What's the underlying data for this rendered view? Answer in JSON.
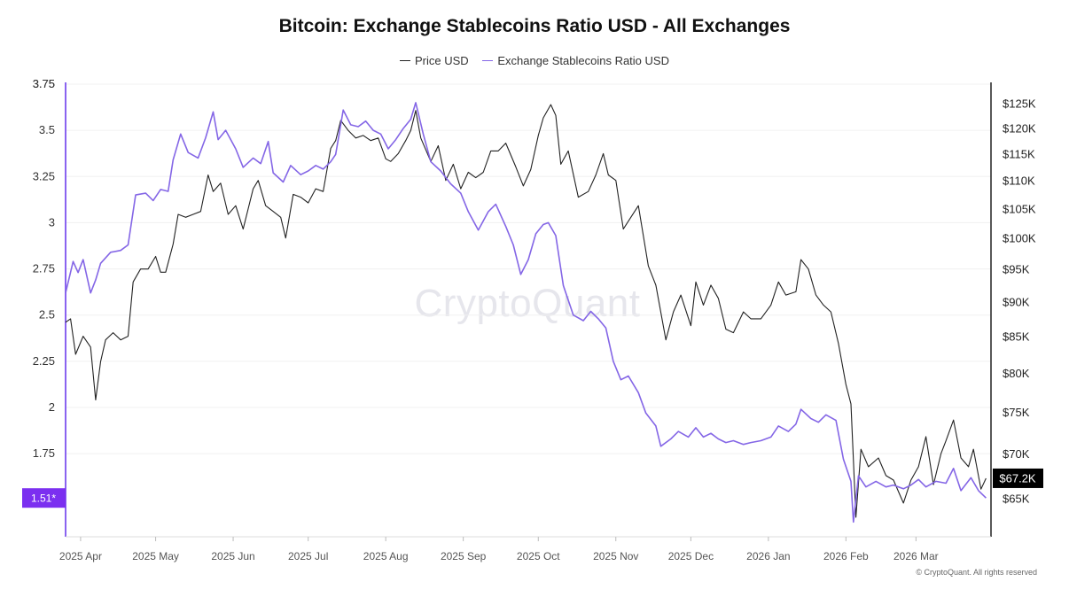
{
  "title": "Bitcoin: Exchange Stablecoins Ratio USD - All Exchanges",
  "legend": {
    "price": "Price USD",
    "ratio": "Exchange Stablecoins Ratio USD"
  },
  "watermark": "CryptoQuant",
  "copyright": "© CryptoQuant. All rights reserved",
  "colors": {
    "price": "#222222",
    "ratio": "#8466e6",
    "ratio_axis": "#8a63f0",
    "ratio_badge": "#7b2ff0",
    "price_badge": "#000000"
  },
  "chart_data": {
    "type": "line",
    "x_axis": {
      "start": "2025-03-26",
      "end": "2026-03-31",
      "ticks": [
        {
          "label": "2025 Apr",
          "date": "2025-04-01"
        },
        {
          "label": "2025 May",
          "date": "2025-05-01"
        },
        {
          "label": "2025 Jun",
          "date": "2025-06-01"
        },
        {
          "label": "2025 Jul",
          "date": "2025-07-01"
        },
        {
          "label": "2025 Aug",
          "date": "2025-08-01"
        },
        {
          "label": "2025 Sep",
          "date": "2025-09-01"
        },
        {
          "label": "2025 Oct",
          "date": "2025-10-01"
        },
        {
          "label": "2025 Nov",
          "date": "2025-11-01"
        },
        {
          "label": "2025 Dec",
          "date": "2025-12-01"
        },
        {
          "label": "2026 Jan",
          "date": "2026-01-01"
        },
        {
          "label": "2026 Feb",
          "date": "2026-02-01"
        },
        {
          "label": "2026 Mar",
          "date": "2026-03-01"
        }
      ]
    },
    "y_left": {
      "ylim": [
        1.3,
        3.75
      ],
      "ticks": [
        1.75,
        2,
        2.25,
        2.5,
        2.75,
        3,
        3.25,
        3.5,
        3.75
      ]
    },
    "y_right": {
      "scale": "log",
      "ylim": [
        61000,
        129000
      ],
      "ticks": [
        65000,
        70000,
        75000,
        80000,
        85000,
        90000,
        95000,
        100000,
        105000,
        110000,
        115000,
        120000,
        125000
      ],
      "tick_labels": [
        "$65K",
        "$70K",
        "$75K",
        "$80K",
        "$85K",
        "$90K",
        "$95K",
        "$100K",
        "$105K",
        "$110K",
        "$115K",
        "$120K",
        "$125K"
      ]
    },
    "series": [
      {
        "name": "Price USD",
        "axis": "right",
        "points": [
          [
            "2025-03-26",
            87000
          ],
          [
            "2025-03-28",
            87500
          ],
          [
            "2025-03-30",
            82500
          ],
          [
            "2025-04-02",
            85000
          ],
          [
            "2025-04-05",
            83500
          ],
          [
            "2025-04-07",
            76500
          ],
          [
            "2025-04-09",
            81500
          ],
          [
            "2025-04-11",
            84500
          ],
          [
            "2025-04-14",
            85500
          ],
          [
            "2025-04-17",
            84500
          ],
          [
            "2025-04-20",
            85000
          ],
          [
            "2025-04-22",
            93000
          ],
          [
            "2025-04-25",
            95000
          ],
          [
            "2025-04-28",
            95000
          ],
          [
            "2025-05-01",
            97000
          ],
          [
            "2025-05-03",
            94500
          ],
          [
            "2025-05-05",
            94500
          ],
          [
            "2025-05-08",
            99000
          ],
          [
            "2025-05-10",
            104000
          ],
          [
            "2025-05-13",
            103500
          ],
          [
            "2025-05-16",
            104000
          ],
          [
            "2025-05-19",
            104500
          ],
          [
            "2025-05-22",
            111000
          ],
          [
            "2025-05-24",
            108000
          ],
          [
            "2025-05-27",
            109500
          ],
          [
            "2025-05-30",
            104000
          ],
          [
            "2025-06-02",
            105500
          ],
          [
            "2025-06-05",
            101500
          ],
          [
            "2025-06-09",
            108500
          ],
          [
            "2025-06-11",
            110000
          ],
          [
            "2025-06-14",
            105500
          ],
          [
            "2025-06-17",
            104500
          ],
          [
            "2025-06-20",
            103500
          ],
          [
            "2025-06-22",
            100000
          ],
          [
            "2025-06-25",
            107500
          ],
          [
            "2025-06-28",
            107000
          ],
          [
            "2025-07-01",
            106000
          ],
          [
            "2025-07-04",
            108500
          ],
          [
            "2025-07-07",
            108000
          ],
          [
            "2025-07-10",
            116000
          ],
          [
            "2025-07-12",
            117500
          ],
          [
            "2025-07-14",
            121500
          ],
          [
            "2025-07-17",
            119500
          ],
          [
            "2025-07-20",
            118000
          ],
          [
            "2025-07-23",
            118500
          ],
          [
            "2025-07-26",
            117500
          ],
          [
            "2025-07-29",
            118000
          ],
          [
            "2025-08-01",
            114000
          ],
          [
            "2025-08-03",
            113500
          ],
          [
            "2025-08-06",
            115000
          ],
          [
            "2025-08-09",
            117500
          ],
          [
            "2025-08-11",
            119500
          ],
          [
            "2025-08-13",
            123500
          ],
          [
            "2025-08-15",
            118000
          ],
          [
            "2025-08-19",
            113500
          ],
          [
            "2025-08-22",
            116500
          ],
          [
            "2025-08-25",
            110000
          ],
          [
            "2025-08-28",
            113000
          ],
          [
            "2025-08-31",
            108500
          ],
          [
            "2025-09-03",
            111500
          ],
          [
            "2025-09-06",
            110500
          ],
          [
            "2025-09-09",
            111500
          ],
          [
            "2025-09-12",
            115500
          ],
          [
            "2025-09-15",
            115500
          ],
          [
            "2025-09-18",
            117000
          ],
          [
            "2025-09-22",
            112500
          ],
          [
            "2025-09-25",
            109000
          ],
          [
            "2025-09-28",
            112000
          ],
          [
            "2025-10-01",
            118500
          ],
          [
            "2025-10-03",
            122000
          ],
          [
            "2025-10-06",
            124700
          ],
          [
            "2025-10-08",
            122500
          ],
          [
            "2025-10-10",
            113000
          ],
          [
            "2025-10-13",
            115500
          ],
          [
            "2025-10-17",
            107000
          ],
          [
            "2025-10-21",
            108000
          ],
          [
            "2025-10-24",
            111000
          ],
          [
            "2025-10-27",
            115000
          ],
          [
            "2025-10-29",
            111000
          ],
          [
            "2025-11-01",
            110000
          ],
          [
            "2025-11-04",
            101500
          ],
          [
            "2025-11-07",
            103500
          ],
          [
            "2025-11-10",
            105500
          ],
          [
            "2025-11-14",
            95500
          ],
          [
            "2025-11-17",
            92500
          ],
          [
            "2025-11-21",
            84500
          ],
          [
            "2025-11-24",
            88500
          ],
          [
            "2025-11-27",
            91000
          ],
          [
            "2025-12-01",
            86500
          ],
          [
            "2025-12-03",
            93000
          ],
          [
            "2025-12-06",
            89500
          ],
          [
            "2025-12-09",
            92500
          ],
          [
            "2025-12-12",
            90500
          ],
          [
            "2025-12-15",
            86000
          ],
          [
            "2025-12-18",
            85500
          ],
          [
            "2025-12-22",
            88500
          ],
          [
            "2025-12-25",
            87500
          ],
          [
            "2025-12-29",
            87500
          ],
          [
            "2026-01-02",
            89500
          ],
          [
            "2026-01-05",
            93000
          ],
          [
            "2026-01-08",
            91000
          ],
          [
            "2026-01-12",
            91500
          ],
          [
            "2026-01-14",
            96500
          ],
          [
            "2026-01-17",
            95000
          ],
          [
            "2026-01-20",
            91000
          ],
          [
            "2026-01-23",
            89500
          ],
          [
            "2026-01-26",
            88500
          ],
          [
            "2026-01-29",
            84000
          ],
          [
            "2026-02-01",
            78500
          ],
          [
            "2026-02-03",
            76000
          ],
          [
            "2026-02-05",
            63000
          ],
          [
            "2026-02-07",
            70500
          ],
          [
            "2026-02-10",
            68500
          ],
          [
            "2026-02-14",
            69500
          ],
          [
            "2026-02-17",
            67500
          ],
          [
            "2026-02-20",
            67000
          ],
          [
            "2026-02-24",
            64500
          ],
          [
            "2026-02-27",
            67000
          ],
          [
            "2026-03-02",
            68500
          ],
          [
            "2026-03-05",
            72000
          ],
          [
            "2026-03-08",
            66500
          ],
          [
            "2026-03-11",
            70000
          ],
          [
            "2026-03-13",
            71500
          ],
          [
            "2026-03-16",
            74000
          ],
          [
            "2026-03-19",
            69500
          ],
          [
            "2026-03-22",
            68500
          ],
          [
            "2026-03-24",
            70500
          ],
          [
            "2026-03-27",
            66000
          ],
          [
            "2026-03-29",
            67200
          ]
        ]
      },
      {
        "name": "Exchange Stablecoins Ratio USD",
        "axis": "left",
        "points": [
          [
            "2025-03-26",
            2.62
          ],
          [
            "2025-03-29",
            2.79
          ],
          [
            "2025-03-31",
            2.73
          ],
          [
            "2025-04-02",
            2.8
          ],
          [
            "2025-04-05",
            2.62
          ],
          [
            "2025-04-07",
            2.69
          ],
          [
            "2025-04-09",
            2.78
          ],
          [
            "2025-04-13",
            2.84
          ],
          [
            "2025-04-17",
            2.85
          ],
          [
            "2025-04-20",
            2.88
          ],
          [
            "2025-04-23",
            3.15
          ],
          [
            "2025-04-27",
            3.16
          ],
          [
            "2025-04-30",
            3.12
          ],
          [
            "2025-05-03",
            3.18
          ],
          [
            "2025-05-06",
            3.17
          ],
          [
            "2025-05-08",
            3.34
          ],
          [
            "2025-05-11",
            3.48
          ],
          [
            "2025-05-14",
            3.38
          ],
          [
            "2025-05-18",
            3.35
          ],
          [
            "2025-05-21",
            3.46
          ],
          [
            "2025-05-24",
            3.6
          ],
          [
            "2025-05-26",
            3.45
          ],
          [
            "2025-05-29",
            3.5
          ],
          [
            "2025-06-02",
            3.4
          ],
          [
            "2025-06-05",
            3.3
          ],
          [
            "2025-06-09",
            3.35
          ],
          [
            "2025-06-12",
            3.32
          ],
          [
            "2025-06-15",
            3.44
          ],
          [
            "2025-06-17",
            3.27
          ],
          [
            "2025-06-21",
            3.22
          ],
          [
            "2025-06-24",
            3.31
          ],
          [
            "2025-06-28",
            3.26
          ],
          [
            "2025-07-01",
            3.28
          ],
          [
            "2025-07-04",
            3.31
          ],
          [
            "2025-07-07",
            3.29
          ],
          [
            "2025-07-10",
            3.33
          ],
          [
            "2025-07-12",
            3.37
          ],
          [
            "2025-07-15",
            3.61
          ],
          [
            "2025-07-18",
            3.53
          ],
          [
            "2025-07-21",
            3.52
          ],
          [
            "2025-07-24",
            3.55
          ],
          [
            "2025-07-27",
            3.5
          ],
          [
            "2025-07-30",
            3.48
          ],
          [
            "2025-08-02",
            3.4
          ],
          [
            "2025-08-05",
            3.45
          ],
          [
            "2025-08-08",
            3.51
          ],
          [
            "2025-08-11",
            3.56
          ],
          [
            "2025-08-13",
            3.65
          ],
          [
            "2025-08-16",
            3.48
          ],
          [
            "2025-08-19",
            3.33
          ],
          [
            "2025-08-23",
            3.28
          ],
          [
            "2025-08-27",
            3.21
          ],
          [
            "2025-08-31",
            3.16
          ],
          [
            "2025-09-03",
            3.06
          ],
          [
            "2025-09-07",
            2.96
          ],
          [
            "2025-09-11",
            3.06
          ],
          [
            "2025-09-14",
            3.1
          ],
          [
            "2025-09-18",
            2.98
          ],
          [
            "2025-09-21",
            2.88
          ],
          [
            "2025-09-24",
            2.72
          ],
          [
            "2025-09-27",
            2.8
          ],
          [
            "2025-09-30",
            2.94
          ],
          [
            "2025-10-03",
            2.99
          ],
          [
            "2025-10-05",
            3.0
          ],
          [
            "2025-10-08",
            2.93
          ],
          [
            "2025-10-11",
            2.66
          ],
          [
            "2025-10-15",
            2.5
          ],
          [
            "2025-10-19",
            2.47
          ],
          [
            "2025-10-22",
            2.52
          ],
          [
            "2025-10-25",
            2.48
          ],
          [
            "2025-10-28",
            2.43
          ],
          [
            "2025-10-31",
            2.25
          ],
          [
            "2025-11-03",
            2.15
          ],
          [
            "2025-11-06",
            2.17
          ],
          [
            "2025-11-10",
            2.08
          ],
          [
            "2025-11-13",
            1.97
          ],
          [
            "2025-11-17",
            1.9
          ],
          [
            "2025-11-19",
            1.79
          ],
          [
            "2025-11-23",
            1.83
          ],
          [
            "2025-11-26",
            1.87
          ],
          [
            "2025-11-30",
            1.84
          ],
          [
            "2025-12-03",
            1.89
          ],
          [
            "2025-12-06",
            1.84
          ],
          [
            "2025-12-09",
            1.86
          ],
          [
            "2025-12-12",
            1.83
          ],
          [
            "2025-12-15",
            1.81
          ],
          [
            "2025-12-18",
            1.82
          ],
          [
            "2025-12-22",
            1.8
          ],
          [
            "2025-12-25",
            1.81
          ],
          [
            "2025-12-29",
            1.82
          ],
          [
            "2026-01-02",
            1.84
          ],
          [
            "2026-01-05",
            1.9
          ],
          [
            "2026-01-09",
            1.87
          ],
          [
            "2026-01-12",
            1.91
          ],
          [
            "2026-01-14",
            1.99
          ],
          [
            "2026-01-18",
            1.94
          ],
          [
            "2026-01-21",
            1.92
          ],
          [
            "2026-01-24",
            1.96
          ],
          [
            "2026-01-28",
            1.93
          ],
          [
            "2026-01-31",
            1.72
          ],
          [
            "2026-02-03",
            1.6
          ],
          [
            "2026-02-04",
            1.38
          ],
          [
            "2026-02-06",
            1.63
          ],
          [
            "2026-02-09",
            1.57
          ],
          [
            "2026-02-13",
            1.6
          ],
          [
            "2026-02-17",
            1.57
          ],
          [
            "2026-02-20",
            1.58
          ],
          [
            "2026-02-24",
            1.56
          ],
          [
            "2026-02-27",
            1.58
          ],
          [
            "2026-03-02",
            1.61
          ],
          [
            "2026-03-05",
            1.57
          ],
          [
            "2026-03-09",
            1.6
          ],
          [
            "2026-03-13",
            1.59
          ],
          [
            "2026-03-16",
            1.67
          ],
          [
            "2026-03-19",
            1.55
          ],
          [
            "2026-03-23",
            1.62
          ],
          [
            "2026-03-26",
            1.55
          ],
          [
            "2026-03-29",
            1.51
          ]
        ]
      }
    ],
    "current_values": {
      "ratio_label": "1.51*",
      "ratio": 1.51,
      "price_label": "$67.2K",
      "price": 67200
    }
  }
}
